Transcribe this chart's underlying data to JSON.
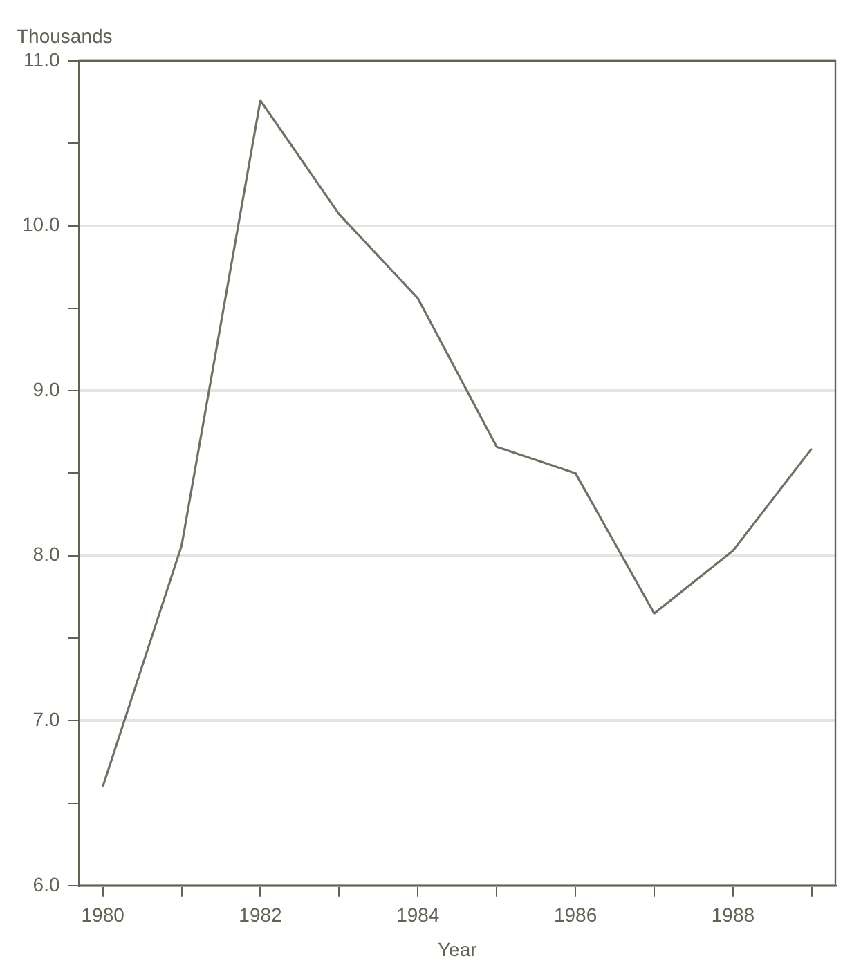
{
  "chart_data": {
    "type": "line",
    "ylabel": "Thousands",
    "xlabel": "Year",
    "x": [
      1980,
      1981,
      1982,
      1983,
      1984,
      1985,
      1986,
      1987,
      1988,
      1989
    ],
    "series": [
      {
        "color": "#6e7262",
        "values": [
          6.6,
          8.06,
          10.76,
          10.07,
          9.56,
          8.66,
          8.5,
          7.65,
          8.03,
          8.65
        ]
      }
    ],
    "xlim": [
      1979.7,
      1989.3
    ],
    "xticks": [
      1980,
      {
        "value": 1981,
        "label": null
      },
      1982,
      {
        "value": 1983,
        "label": null
      },
      1984,
      {
        "value": 1985,
        "label": null
      },
      1986,
      {
        "value": 1987,
        "label": null
      },
      1988,
      {
        "value": 1989,
        "label": null
      }
    ],
    "ylim": [
      6,
      11
    ],
    "yticks": [
      {
        "value": 6,
        "label": "6.0"
      },
      {
        "value": 6.5,
        "label": null
      },
      {
        "value": 7,
        "label": "7.0"
      },
      {
        "value": 7.5,
        "label": null
      },
      {
        "value": 8,
        "label": "8.0"
      },
      {
        "value": 8.5,
        "label": null
      },
      {
        "value": 9,
        "label": "9.0"
      },
      {
        "value": 9.5,
        "label": null
      },
      {
        "value": 10,
        "label": "10.0"
      },
      {
        "value": 10.5,
        "label": null
      },
      {
        "value": 11,
        "label": "11.0"
      }
    ],
    "grid": "y",
    "legend": false,
    "marker": "none",
    "line_style": "solid"
  }
}
